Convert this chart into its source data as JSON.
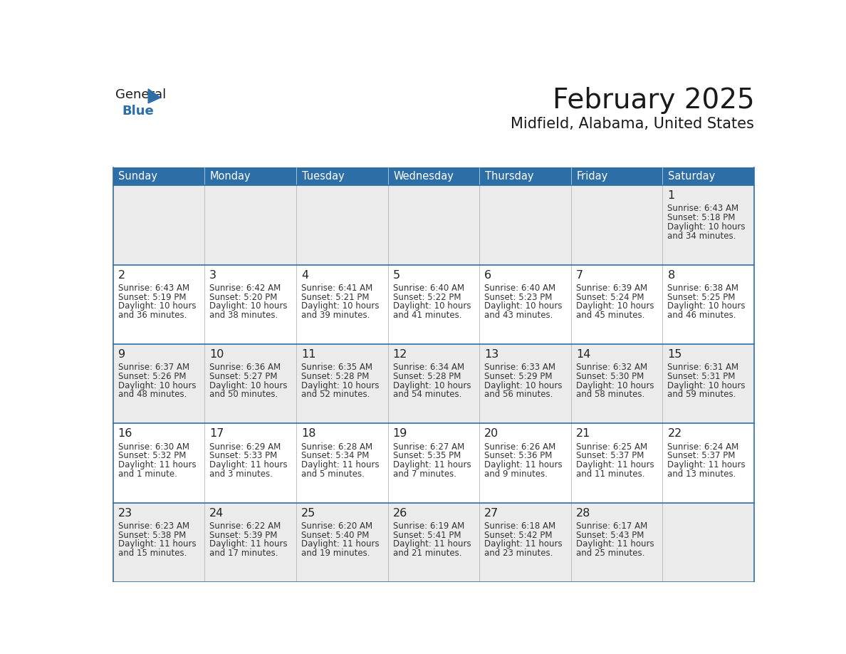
{
  "title": "February 2025",
  "subtitle": "Midfield, Alabama, United States",
  "days_of_week": [
    "Sunday",
    "Monday",
    "Tuesday",
    "Wednesday",
    "Thursday",
    "Friday",
    "Saturday"
  ],
  "header_bg": "#2E6EA6",
  "header_text": "#FFFFFF",
  "row_bg_light": "#EBEBEB",
  "row_bg_white": "#FFFFFF",
  "border_color": "#2E6EA6",
  "cell_divider_color": "#CCCCCC",
  "text_color": "#333333",
  "day_num_color": "#222222",
  "title_color": "#1a1a1a",
  "subtitle_color": "#1a1a1a",
  "logo_color1": "#1a1a1a",
  "logo_color2": "#2E6EA6",
  "logo_triangle_color": "#2E6EA6",
  "calendar": [
    [
      null,
      null,
      null,
      null,
      null,
      null,
      {
        "day": 1,
        "sunrise": "6:43 AM",
        "sunset": "5:18 PM",
        "daylight_line1": "Daylight: 10 hours",
        "daylight_line2": "and 34 minutes."
      }
    ],
    [
      {
        "day": 2,
        "sunrise": "6:43 AM",
        "sunset": "5:19 PM",
        "daylight_line1": "Daylight: 10 hours",
        "daylight_line2": "and 36 minutes."
      },
      {
        "day": 3,
        "sunrise": "6:42 AM",
        "sunset": "5:20 PM",
        "daylight_line1": "Daylight: 10 hours",
        "daylight_line2": "and 38 minutes."
      },
      {
        "day": 4,
        "sunrise": "6:41 AM",
        "sunset": "5:21 PM",
        "daylight_line1": "Daylight: 10 hours",
        "daylight_line2": "and 39 minutes."
      },
      {
        "day": 5,
        "sunrise": "6:40 AM",
        "sunset": "5:22 PM",
        "daylight_line1": "Daylight: 10 hours",
        "daylight_line2": "and 41 minutes."
      },
      {
        "day": 6,
        "sunrise": "6:40 AM",
        "sunset": "5:23 PM",
        "daylight_line1": "Daylight: 10 hours",
        "daylight_line2": "and 43 minutes."
      },
      {
        "day": 7,
        "sunrise": "6:39 AM",
        "sunset": "5:24 PM",
        "daylight_line1": "Daylight: 10 hours",
        "daylight_line2": "and 45 minutes."
      },
      {
        "day": 8,
        "sunrise": "6:38 AM",
        "sunset": "5:25 PM",
        "daylight_line1": "Daylight: 10 hours",
        "daylight_line2": "and 46 minutes."
      }
    ],
    [
      {
        "day": 9,
        "sunrise": "6:37 AM",
        "sunset": "5:26 PM",
        "daylight_line1": "Daylight: 10 hours",
        "daylight_line2": "and 48 minutes."
      },
      {
        "day": 10,
        "sunrise": "6:36 AM",
        "sunset": "5:27 PM",
        "daylight_line1": "Daylight: 10 hours",
        "daylight_line2": "and 50 minutes."
      },
      {
        "day": 11,
        "sunrise": "6:35 AM",
        "sunset": "5:28 PM",
        "daylight_line1": "Daylight: 10 hours",
        "daylight_line2": "and 52 minutes."
      },
      {
        "day": 12,
        "sunrise": "6:34 AM",
        "sunset": "5:28 PM",
        "daylight_line1": "Daylight: 10 hours",
        "daylight_line2": "and 54 minutes."
      },
      {
        "day": 13,
        "sunrise": "6:33 AM",
        "sunset": "5:29 PM",
        "daylight_line1": "Daylight: 10 hours",
        "daylight_line2": "and 56 minutes."
      },
      {
        "day": 14,
        "sunrise": "6:32 AM",
        "sunset": "5:30 PM",
        "daylight_line1": "Daylight: 10 hours",
        "daylight_line2": "and 58 minutes."
      },
      {
        "day": 15,
        "sunrise": "6:31 AM",
        "sunset": "5:31 PM",
        "daylight_line1": "Daylight: 10 hours",
        "daylight_line2": "and 59 minutes."
      }
    ],
    [
      {
        "day": 16,
        "sunrise": "6:30 AM",
        "sunset": "5:32 PM",
        "daylight_line1": "Daylight: 11 hours",
        "daylight_line2": "and 1 minute."
      },
      {
        "day": 17,
        "sunrise": "6:29 AM",
        "sunset": "5:33 PM",
        "daylight_line1": "Daylight: 11 hours",
        "daylight_line2": "and 3 minutes."
      },
      {
        "day": 18,
        "sunrise": "6:28 AM",
        "sunset": "5:34 PM",
        "daylight_line1": "Daylight: 11 hours",
        "daylight_line2": "and 5 minutes."
      },
      {
        "day": 19,
        "sunrise": "6:27 AM",
        "sunset": "5:35 PM",
        "daylight_line1": "Daylight: 11 hours",
        "daylight_line2": "and 7 minutes."
      },
      {
        "day": 20,
        "sunrise": "6:26 AM",
        "sunset": "5:36 PM",
        "daylight_line1": "Daylight: 11 hours",
        "daylight_line2": "and 9 minutes."
      },
      {
        "day": 21,
        "sunrise": "6:25 AM",
        "sunset": "5:37 PM",
        "daylight_line1": "Daylight: 11 hours",
        "daylight_line2": "and 11 minutes."
      },
      {
        "day": 22,
        "sunrise": "6:24 AM",
        "sunset": "5:37 PM",
        "daylight_line1": "Daylight: 11 hours",
        "daylight_line2": "and 13 minutes."
      }
    ],
    [
      {
        "day": 23,
        "sunrise": "6:23 AM",
        "sunset": "5:38 PM",
        "daylight_line1": "Daylight: 11 hours",
        "daylight_line2": "and 15 minutes."
      },
      {
        "day": 24,
        "sunrise": "6:22 AM",
        "sunset": "5:39 PM",
        "daylight_line1": "Daylight: 11 hours",
        "daylight_line2": "and 17 minutes."
      },
      {
        "day": 25,
        "sunrise": "6:20 AM",
        "sunset": "5:40 PM",
        "daylight_line1": "Daylight: 11 hours",
        "daylight_line2": "and 19 minutes."
      },
      {
        "day": 26,
        "sunrise": "6:19 AM",
        "sunset": "5:41 PM",
        "daylight_line1": "Daylight: 11 hours",
        "daylight_line2": "and 21 minutes."
      },
      {
        "day": 27,
        "sunrise": "6:18 AM",
        "sunset": "5:42 PM",
        "daylight_line1": "Daylight: 11 hours",
        "daylight_line2": "and 23 minutes."
      },
      {
        "day": 28,
        "sunrise": "6:17 AM",
        "sunset": "5:43 PM",
        "daylight_line1": "Daylight: 11 hours",
        "daylight_line2": "and 25 minutes."
      },
      null
    ]
  ]
}
